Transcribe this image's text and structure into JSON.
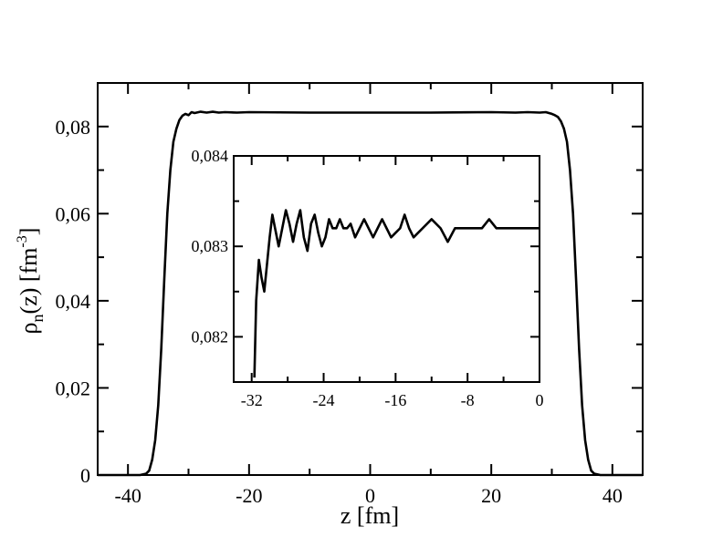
{
  "chart_data": [
    {
      "type": "line",
      "title": "",
      "xlabel": "z [fm]",
      "ylabel": "ρn(z) [fm-3]",
      "ylabel_parts": {
        "rho": "ρ",
        "sub": "n",
        "mid": "(z) [fm",
        "sup": "-3",
        "end": "]"
      },
      "xlim": [
        -45,
        45
      ],
      "ylim": [
        0,
        0.09
      ],
      "xticks": [
        -40,
        -20,
        0,
        20,
        40
      ],
      "xtick_labels": [
        "-40",
        "-20",
        "0",
        "20",
        "40"
      ],
      "yticks": [
        0,
        0.02,
        0.04,
        0.06,
        0.08
      ],
      "ytick_labels": [
        "0",
        "0,02",
        "0,04",
        "0,06",
        "0,08"
      ],
      "grid": false,
      "series": [
        {
          "x": [
            -45,
            -38,
            -37,
            -36.5,
            -36,
            -35.5,
            -35,
            -34.5,
            -34,
            -33.5,
            -33,
            -32.5,
            -32,
            -31.5,
            -31,
            -30.5,
            -30,
            -29.5,
            -29,
            -28,
            -27,
            -26,
            -25,
            -24,
            -22,
            -20,
            -10,
            0,
            10,
            20,
            24,
            26,
            28,
            29,
            30,
            30.5,
            31,
            31.5,
            32,
            32.5,
            33,
            33.5,
            34,
            34.5,
            35,
            35.5,
            36,
            36.5,
            37,
            38,
            45
          ],
          "y": [
            0,
            0,
            0.0003,
            0.001,
            0.0035,
            0.008,
            0.016,
            0.029,
            0.045,
            0.06,
            0.07,
            0.0765,
            0.0795,
            0.0815,
            0.0825,
            0.0829,
            0.0826,
            0.0833,
            0.0831,
            0.0834,
            0.0832,
            0.0834,
            0.0832,
            0.0833,
            0.0832,
            0.0833,
            0.0832,
            0.0832,
            0.0832,
            0.0833,
            0.0832,
            0.0833,
            0.0832,
            0.0833,
            0.0829,
            0.0826,
            0.0822,
            0.0812,
            0.0795,
            0.0765,
            0.07,
            0.06,
            0.045,
            0.029,
            0.016,
            0.008,
            0.0035,
            0.001,
            0.0003,
            0,
            0
          ]
        }
      ]
    },
    {
      "type": "line",
      "title": "",
      "xlabel": "",
      "ylabel": "",
      "xlim": [
        -34,
        0
      ],
      "ylim": [
        0.0815,
        0.084
      ],
      "xticks": [
        -32,
        -24,
        -16,
        -8,
        0
      ],
      "xtick_labels": [
        "-32",
        "-24",
        "-16",
        "-8",
        "0"
      ],
      "yticks": [
        0.082,
        0.083,
        0.084
      ],
      "ytick_labels": [
        "0,082",
        "0,083",
        "0,084"
      ],
      "grid": false,
      "series": [
        {
          "x": [
            -31.7,
            -31.5,
            -31.2,
            -30.9,
            -30.6,
            -30.3,
            -30.0,
            -29.7,
            -29.4,
            -29.0,
            -28.6,
            -28.2,
            -27.8,
            -27.4,
            -27.0,
            -26.6,
            -26.2,
            -25.8,
            -25.4,
            -25.0,
            -24.6,
            -24.2,
            -23.8,
            -23.4,
            -23.0,
            -22.6,
            -22.2,
            -21.8,
            -21.4,
            -21.0,
            -20.5,
            -20.0,
            -19.5,
            -19.0,
            -18.5,
            -18.0,
            -17.5,
            -17.0,
            -16.5,
            -16.0,
            -15.5,
            -15.0,
            -14.5,
            -14.0,
            -13.0,
            -12.0,
            -11.0,
            -10.2,
            -9.4,
            -8.6,
            -8.0,
            -7.2,
            -6.4,
            -5.6,
            -4.8,
            -4.2,
            -3.6,
            -3.0,
            -2.4,
            -1.8,
            -1.0,
            -0.4,
            0
          ],
          "y": [
            0.08155,
            0.0824,
            0.08285,
            0.08265,
            0.0825,
            0.0828,
            0.0831,
            0.08335,
            0.0832,
            0.083,
            0.0832,
            0.0834,
            0.08325,
            0.08305,
            0.08325,
            0.0834,
            0.0831,
            0.08295,
            0.08325,
            0.08335,
            0.08315,
            0.083,
            0.0831,
            0.0833,
            0.0832,
            0.0832,
            0.0833,
            0.0832,
            0.0832,
            0.08325,
            0.0831,
            0.0832,
            0.0833,
            0.0832,
            0.0831,
            0.0832,
            0.0833,
            0.0832,
            0.0831,
            0.08315,
            0.0832,
            0.08335,
            0.0832,
            0.0831,
            0.0832,
            0.0833,
            0.0832,
            0.08305,
            0.0832,
            0.0832,
            0.0832,
            0.0832,
            0.0832,
            0.0833,
            0.0832,
            0.0832,
            0.0832,
            0.0832,
            0.0832,
            0.0832,
            0.0832,
            0.0832,
            0.0832
          ]
        }
      ]
    }
  ]
}
